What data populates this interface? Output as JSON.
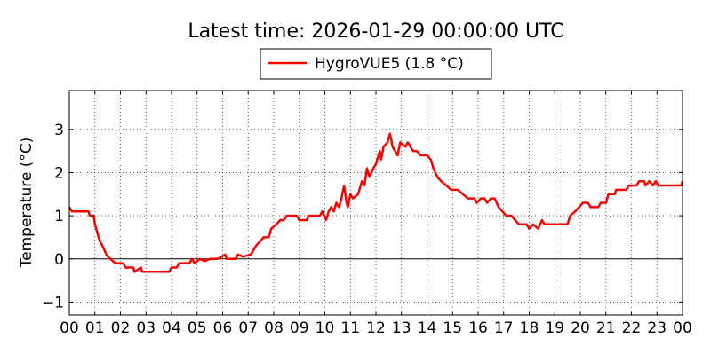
{
  "chart_data": {
    "type": "line",
    "title": "Latest time: 2026-01-29 00:00:00 UTC",
    "xlabel": "",
    "ylabel": "Temperature (°C)",
    "xlim": [
      0,
      24
    ],
    "ylim": [
      -1.3,
      3.9
    ],
    "x_ticks": [
      0,
      1,
      2,
      3,
      4,
      5,
      6,
      7,
      8,
      9,
      10,
      11,
      12,
      13,
      14,
      15,
      16,
      17,
      18,
      19,
      20,
      21,
      22,
      23,
      24
    ],
    "x_tick_labels": [
      "00",
      "01",
      "02",
      "03",
      "04",
      "05",
      "06",
      "07",
      "08",
      "09",
      "10",
      "11",
      "12",
      "13",
      "14",
      "15",
      "16",
      "17",
      "18",
      "19",
      "20",
      "21",
      "22",
      "23",
      "00"
    ],
    "y_ticks": [
      -1,
      0,
      1,
      2,
      3
    ],
    "y_tick_labels": [
      "−1",
      "0",
      "1",
      "2",
      "3"
    ],
    "grid": true,
    "grid_style": "dotted",
    "zero_line": true,
    "legend_position": "top-center-above-plot",
    "series": [
      {
        "name": "HygroVUE5 (1.8 °C)",
        "color": "#ff0000",
        "points": [
          [
            0.0,
            1.2
          ],
          [
            0.1,
            1.1
          ],
          [
            0.3,
            1.1
          ],
          [
            0.6,
            1.1
          ],
          [
            0.75,
            1.1
          ],
          [
            0.8,
            1.0
          ],
          [
            0.95,
            1.0
          ],
          [
            1.0,
            0.8
          ],
          [
            1.1,
            0.6
          ],
          [
            1.2,
            0.4
          ],
          [
            1.3,
            0.3
          ],
          [
            1.45,
            0.1
          ],
          [
            1.6,
            0.0
          ],
          [
            1.8,
            -0.1
          ],
          [
            2.1,
            -0.1
          ],
          [
            2.2,
            -0.2
          ],
          [
            2.5,
            -0.2
          ],
          [
            2.55,
            -0.3
          ],
          [
            2.8,
            -0.2
          ],
          [
            2.85,
            -0.3
          ],
          [
            3.5,
            -0.3
          ],
          [
            3.9,
            -0.3
          ],
          [
            4.0,
            -0.2
          ],
          [
            4.2,
            -0.2
          ],
          [
            4.3,
            -0.1
          ],
          [
            4.5,
            -0.1
          ],
          [
            4.7,
            -0.1
          ],
          [
            4.8,
            0.0
          ],
          [
            4.9,
            -0.1
          ],
          [
            5.1,
            0.0
          ],
          [
            5.3,
            -0.05
          ],
          [
            5.5,
            0.0
          ],
          [
            5.8,
            0.0
          ],
          [
            6.1,
            0.1
          ],
          [
            6.15,
            0.0
          ],
          [
            6.5,
            0.0
          ],
          [
            6.6,
            0.1
          ],
          [
            6.8,
            0.05
          ],
          [
            7.1,
            0.1
          ],
          [
            7.3,
            0.3
          ],
          [
            7.45,
            0.4
          ],
          [
            7.6,
            0.5
          ],
          [
            7.8,
            0.5
          ],
          [
            7.9,
            0.7
          ],
          [
            8.1,
            0.8
          ],
          [
            8.25,
            0.9
          ],
          [
            8.4,
            0.9
          ],
          [
            8.5,
            1.0
          ],
          [
            8.9,
            1.0
          ],
          [
            9.0,
            0.9
          ],
          [
            9.3,
            0.9
          ],
          [
            9.35,
            1.0
          ],
          [
            9.8,
            1.0
          ],
          [
            9.9,
            1.1
          ],
          [
            10.05,
            0.9
          ],
          [
            10.15,
            1.1
          ],
          [
            10.25,
            1.2
          ],
          [
            10.35,
            1.1
          ],
          [
            10.45,
            1.3
          ],
          [
            10.55,
            1.2
          ],
          [
            10.65,
            1.4
          ],
          [
            10.75,
            1.7
          ],
          [
            10.85,
            1.3
          ],
          [
            10.9,
            1.2
          ],
          [
            11.0,
            1.5
          ],
          [
            11.1,
            1.4
          ],
          [
            11.3,
            1.5
          ],
          [
            11.45,
            1.8
          ],
          [
            11.55,
            1.7
          ],
          [
            11.65,
            2.1
          ],
          [
            11.75,
            1.9
          ],
          [
            11.9,
            2.1
          ],
          [
            12.0,
            2.2
          ],
          [
            12.15,
            2.5
          ],
          [
            12.2,
            2.3
          ],
          [
            12.3,
            2.6
          ],
          [
            12.45,
            2.7
          ],
          [
            12.55,
            2.9
          ],
          [
            12.65,
            2.6
          ],
          [
            12.75,
            2.5
          ],
          [
            12.85,
            2.4
          ],
          [
            12.95,
            2.7
          ],
          [
            13.15,
            2.6
          ],
          [
            13.25,
            2.7
          ],
          [
            13.35,
            2.6
          ],
          [
            13.45,
            2.5
          ],
          [
            13.6,
            2.5
          ],
          [
            13.75,
            2.4
          ],
          [
            14.0,
            2.4
          ],
          [
            14.15,
            2.3
          ],
          [
            14.25,
            2.1
          ],
          [
            14.4,
            1.9
          ],
          [
            14.55,
            1.8
          ],
          [
            14.75,
            1.7
          ],
          [
            14.95,
            1.6
          ],
          [
            15.2,
            1.6
          ],
          [
            15.4,
            1.5
          ],
          [
            15.6,
            1.4
          ],
          [
            15.85,
            1.4
          ],
          [
            15.95,
            1.3
          ],
          [
            16.1,
            1.4
          ],
          [
            16.25,
            1.4
          ],
          [
            16.35,
            1.3
          ],
          [
            16.5,
            1.4
          ],
          [
            16.65,
            1.4
          ],
          [
            16.8,
            1.2
          ],
          [
            16.95,
            1.1
          ],
          [
            17.1,
            1.0
          ],
          [
            17.3,
            1.0
          ],
          [
            17.45,
            0.9
          ],
          [
            17.6,
            0.8
          ],
          [
            17.9,
            0.8
          ],
          [
            18.0,
            0.7
          ],
          [
            18.15,
            0.8
          ],
          [
            18.35,
            0.7
          ],
          [
            18.5,
            0.9
          ],
          [
            18.6,
            0.8
          ],
          [
            18.8,
            0.8
          ],
          [
            19.5,
            0.8
          ],
          [
            19.6,
            1.0
          ],
          [
            19.8,
            1.1
          ],
          [
            19.95,
            1.2
          ],
          [
            20.1,
            1.3
          ],
          [
            20.3,
            1.3
          ],
          [
            20.4,
            1.2
          ],
          [
            20.7,
            1.2
          ],
          [
            20.8,
            1.3
          ],
          [
            21.0,
            1.3
          ],
          [
            21.1,
            1.5
          ],
          [
            21.35,
            1.5
          ],
          [
            21.4,
            1.6
          ],
          [
            21.8,
            1.6
          ],
          [
            21.9,
            1.7
          ],
          [
            22.2,
            1.7
          ],
          [
            22.3,
            1.8
          ],
          [
            22.5,
            1.8
          ],
          [
            22.55,
            1.7
          ],
          [
            22.7,
            1.8
          ],
          [
            22.85,
            1.7
          ],
          [
            22.95,
            1.8
          ],
          [
            23.05,
            1.7
          ],
          [
            23.6,
            1.7
          ],
          [
            23.95,
            1.7
          ],
          [
            24.0,
            1.8
          ]
        ]
      }
    ]
  }
}
